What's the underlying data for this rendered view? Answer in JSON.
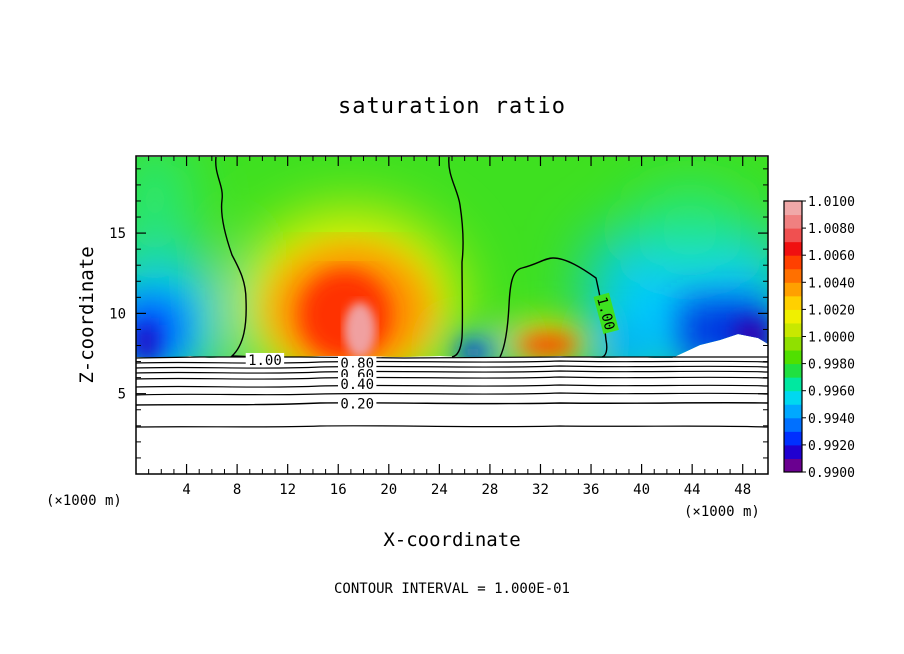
{
  "chart_data": {
    "type": "heatmap",
    "title": "saturation ratio",
    "xlabel": "X-coordinate",
    "ylabel": "Z-coordinate",
    "x_unit": "(×1000 m)",
    "x_ticks": [
      4,
      8,
      12,
      16,
      20,
      24,
      28,
      32,
      36,
      40,
      44,
      48
    ],
    "y_ticks": [
      5,
      10,
      15
    ],
    "xlim": [
      0,
      50
    ],
    "ylim": [
      0,
      19.8
    ],
    "colorbar": {
      "ticks": [
        "0.9900",
        "0.9920",
        "0.9940",
        "0.9960",
        "0.9980",
        "1.0000",
        "1.0020",
        "1.0040",
        "1.0060",
        "1.0080",
        "1.0100"
      ],
      "colors": [
        "#6a0090",
        "#2000d0",
        "#0030ff",
        "#0070ff",
        "#00a8ff",
        "#00d8f0",
        "#00e8a0",
        "#20e040",
        "#50e000",
        "#90e000",
        "#c8e800",
        "#f0f000",
        "#ffd000",
        "#ffa000",
        "#ff7000",
        "#ff4000",
        "#f01010",
        "#f05050",
        "#f08080",
        "#f0a8a8"
      ]
    },
    "contour_labels": [
      {
        "text": "1.00",
        "x": 10.2,
        "z": 7.1
      },
      {
        "text": "0.80",
        "x": 17.5,
        "z": 6.9
      },
      {
        "text": "0.60",
        "x": 17.5,
        "z": 6.2
      },
      {
        "text": "0.40",
        "x": 17.5,
        "z": 5.6
      },
      {
        "text": "0.20",
        "x": 17.5,
        "z": 4.4
      },
      {
        "text": "1.00",
        "x": 37.2,
        "z": 10.0
      }
    ],
    "contour_interval_note": "CONTOUR INTERVAL = 1.000E-01"
  }
}
